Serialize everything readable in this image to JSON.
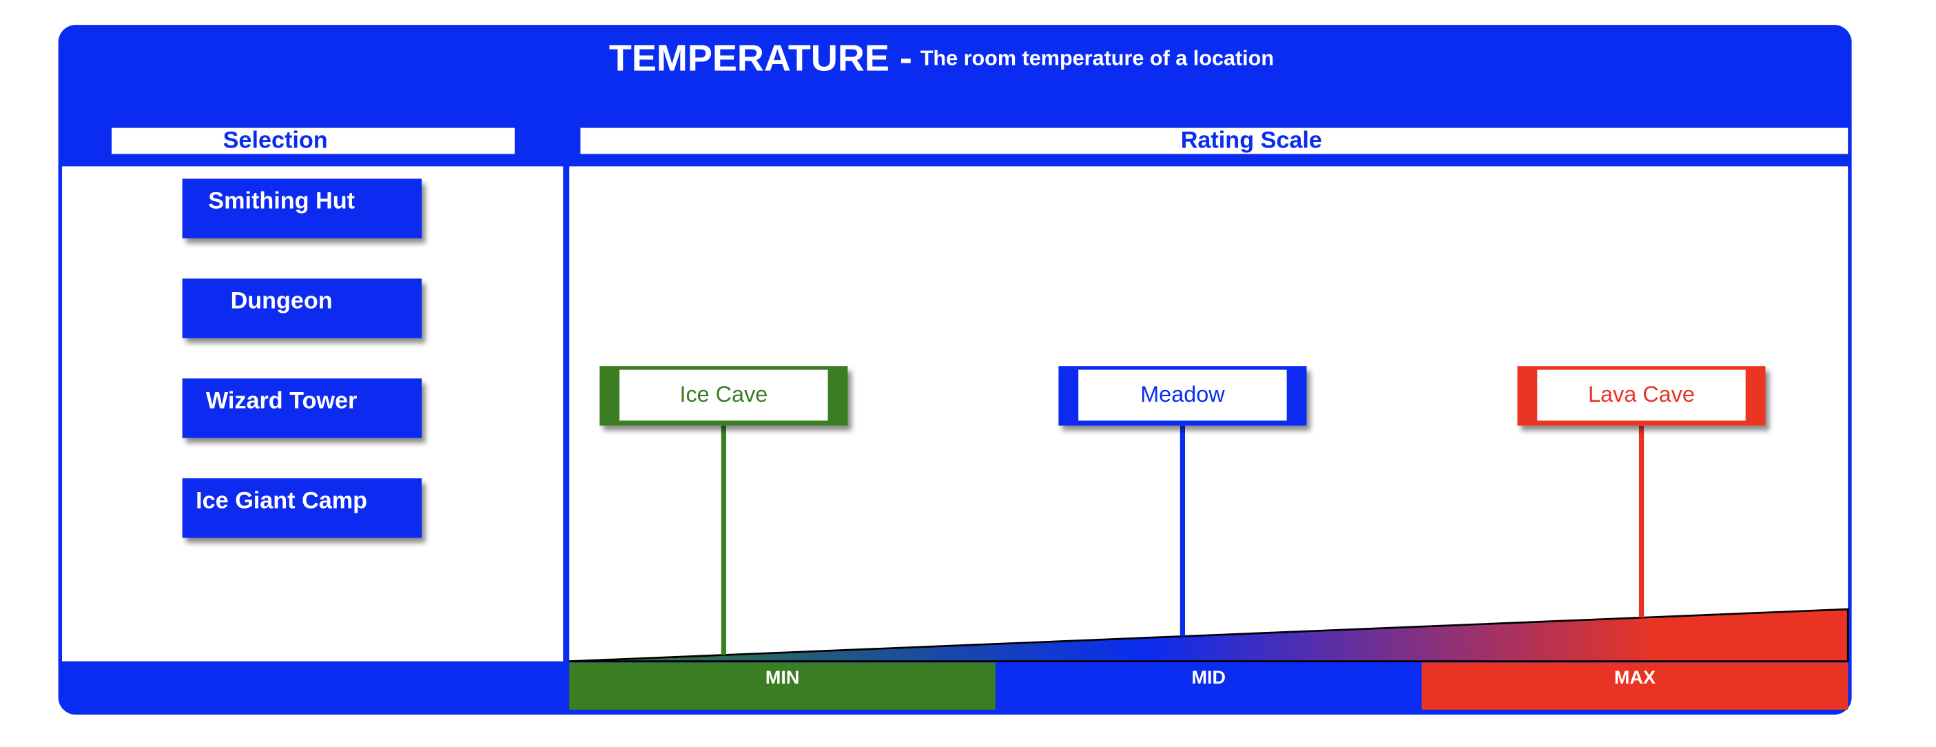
{
  "header": {
    "title": "TEMPERATURE -",
    "subtitle": "The room temperature of a location"
  },
  "selection": {
    "heading": "Selection",
    "items": [
      "Smithing Hut",
      "Dungeon",
      "Wizard Tower",
      "Ice Giant Camp"
    ]
  },
  "rating_scale": {
    "heading": "Rating Scale",
    "markers": [
      {
        "label": "Ice Cave",
        "color": "#3a7d22"
      },
      {
        "label": "Meadow",
        "color": "#0a2cf0"
      },
      {
        "label": "Lava Cave",
        "color": "#e93424"
      }
    ],
    "levels": [
      {
        "label": "MIN",
        "color": "#3a7d22"
      },
      {
        "label": "MID",
        "color": "#0a2cf0"
      },
      {
        "label": "MAX",
        "color": "#e93424"
      }
    ]
  }
}
